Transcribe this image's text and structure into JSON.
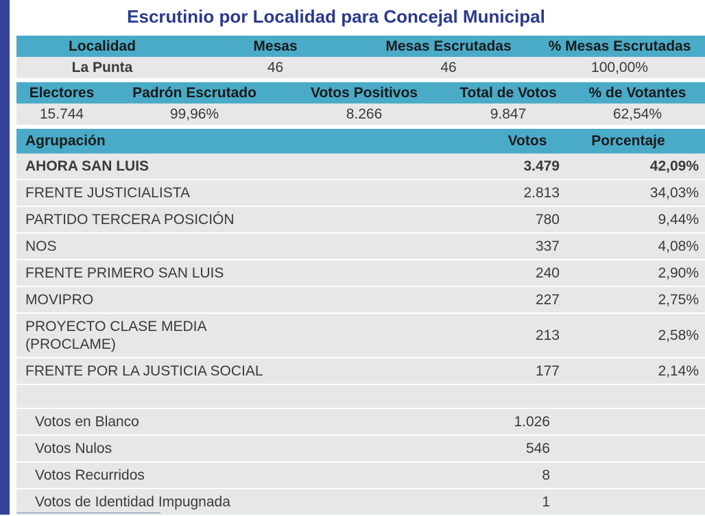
{
  "title": "Escrutinio por Localidad para Concejal Municipal",
  "localidad_table": {
    "headers": [
      "Localidad",
      "Mesas",
      "Mesas Escrutadas",
      "% Mesas Escrutadas"
    ],
    "row": [
      "La Punta",
      "46",
      "46",
      "100,00%"
    ]
  },
  "electores_table": {
    "headers": [
      "Electores",
      "Padrón Escrutado",
      "Votos Positivos",
      "Total de Votos",
      "% de Votantes"
    ],
    "row": [
      "15.744",
      "99,96%",
      "8.266",
      "9.847",
      "62,54%"
    ]
  },
  "results_table": {
    "headers": {
      "agrupacion": "Agrupación",
      "votos": "Votos",
      "porcentaje": "Porcentaje"
    },
    "rows": [
      {
        "name": "AHORA SAN LUIS",
        "votos": "3.479",
        "pct": "42,09%"
      },
      {
        "name": "FRENTE JUSTICIALISTA",
        "votos": "2.813",
        "pct": "34,03%"
      },
      {
        "name": "PARTIDO TERCERA POSICIÓN",
        "votos": "780",
        "pct": "9,44%"
      },
      {
        "name": "NOS",
        "votos": "337",
        "pct": "4,08%"
      },
      {
        "name": "FRENTE PRIMERO SAN LUIS",
        "votos": "240",
        "pct": "2,90%"
      },
      {
        "name": "MOVIPRO",
        "votos": "227",
        "pct": "2,75%"
      },
      {
        "name_line1": "PROYECTO CLASE MEDIA",
        "name_line2": "(PROCLAME)",
        "votos": "213",
        "pct": "2,58%"
      },
      {
        "name": "FRENTE POR LA JUSTICIA SOCIAL",
        "votos": "177",
        "pct": "2,14%"
      }
    ],
    "summary": [
      {
        "name": "Votos en Blanco",
        "votos": "1.026"
      },
      {
        "name": "Votos Nulos",
        "votos": "546"
      },
      {
        "name": "Votos Recurridos",
        "votos": "8"
      },
      {
        "name": "Votos de Identidad Impugnada",
        "votos": "1"
      }
    ]
  },
  "colors": {
    "header_bg": "#4aabc8",
    "row_bg": "#e6e7e7",
    "title": "#2a3a8e",
    "side_bar": "#33429a"
  }
}
